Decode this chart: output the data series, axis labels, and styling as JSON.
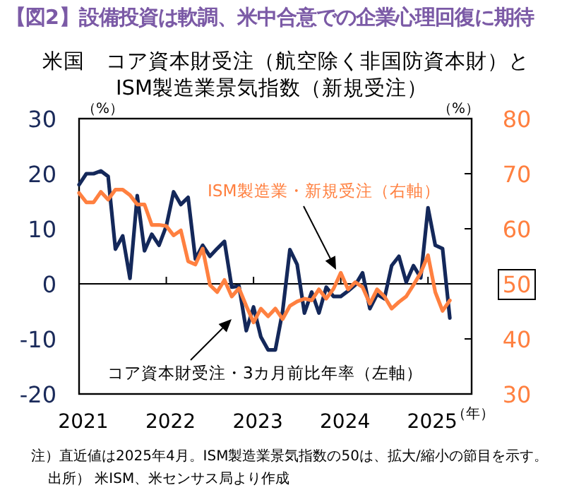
{
  "chart_data": {
    "type": "line",
    "title": "【図2】設備投資は軟調、米中合意での企業心理回復に期待",
    "subtitle": "米国　コア資本財受注（航空除く非国防資本財）と\nISM製造業景気指数（新規受注）",
    "ylabel": "（%）",
    "y2label": "（%）",
    "xlabel": "（年）",
    "xlim": [
      "2021-01",
      "2025-07"
    ],
    "xticks": [
      {
        "value": "2021-01",
        "label": "2021"
      },
      {
        "value": "2022-01",
        "label": "2022"
      },
      {
        "value": "2023-01",
        "label": "2023"
      },
      {
        "value": "2024-01",
        "label": "2024"
      },
      {
        "value": "2025-01",
        "label": "2025"
      }
    ],
    "ylim": [
      -20,
      30
    ],
    "yticks": [
      -20,
      -10,
      0,
      10,
      20,
      30
    ],
    "y2lim": [
      30,
      80
    ],
    "y2ticks": [
      30,
      40,
      50,
      60,
      70,
      80
    ],
    "ref_lines": [
      {
        "axis": "y",
        "value": 0
      }
    ],
    "grid": false,
    "x": [
      "2021-01",
      "2021-02",
      "2021-03",
      "2021-04",
      "2021-05",
      "2021-06",
      "2021-07",
      "2021-08",
      "2021-09",
      "2021-10",
      "2021-11",
      "2021-12",
      "2022-01",
      "2022-02",
      "2022-03",
      "2022-04",
      "2022-05",
      "2022-06",
      "2022-07",
      "2022-08",
      "2022-09",
      "2022-10",
      "2022-11",
      "2022-12",
      "2023-01",
      "2023-02",
      "2023-03",
      "2023-04",
      "2023-05",
      "2023-06",
      "2023-07",
      "2023-08",
      "2023-09",
      "2023-10",
      "2023-11",
      "2023-12",
      "2024-01",
      "2024-02",
      "2024-03",
      "2024-04",
      "2024-05",
      "2024-06",
      "2024-07",
      "2024-08",
      "2024-09",
      "2024-10",
      "2024-11",
      "2024-12",
      "2025-01",
      "2025-02",
      "2025-03",
      "2025-04"
    ],
    "series": [
      {
        "name": "コア資本財受注・3カ月前比年率（左軸）",
        "color": "#14285a",
        "values": [
          18,
          20,
          20,
          20.5,
          19.5,
          6.3,
          8.7,
          1,
          16,
          6,
          9,
          7,
          10.5,
          16.7,
          14.4,
          15.7,
          4.5,
          7,
          5,
          6.4,
          7.7,
          -0.6,
          -0.4,
          -8.5,
          -4.2,
          -9.6,
          -12,
          -12,
          -5,
          6.2,
          3.5,
          -5.3,
          -1.5,
          -5.3,
          -0.6,
          -2.3,
          -2.3,
          -1.3,
          -0.2,
          2,
          -4.5,
          -1.9,
          -2.7,
          3.3,
          5,
          0.3,
          3.3,
          1.1,
          13.8,
          7,
          6.4,
          -6.2
        ]
      },
      {
        "name": "ISM製造業・新規受注（右軸）",
        "color": "#ff8040",
        "axis": "y2",
        "values": [
          66.5,
          64.8,
          64.8,
          66.7,
          65.3,
          67.1,
          67.1,
          66.1,
          64.4,
          64.4,
          60.7,
          60.7,
          60.5,
          58.8,
          59.7,
          54.1,
          53.5,
          56.4,
          49.8,
          48.5,
          50.7,
          47.7,
          49.2,
          46,
          43,
          45.5,
          44.1,
          45.5,
          43.6,
          46,
          46.8,
          47.3,
          47,
          49,
          47.3,
          49.1,
          52,
          49,
          50.3,
          49.4,
          46.4,
          49,
          47.7,
          45.5,
          46.7,
          47.7,
          49.8,
          52,
          55.2,
          48.5,
          45.1,
          47
        ]
      }
    ],
    "annotations": [
      "注）直近値は2025年4月。ISM製造業景気指数の50は、拡大/縮小の節目を示す。",
      "出所） 米ISM、米センサス局より作成"
    ]
  }
}
